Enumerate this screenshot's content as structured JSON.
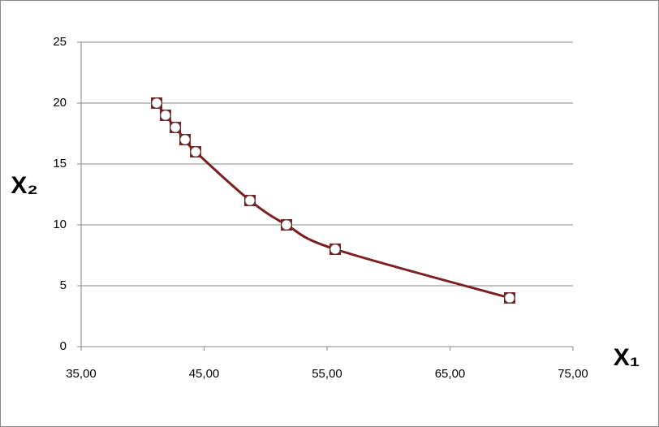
{
  "chart_data": {
    "type": "scatter-line",
    "x_label": "X₁",
    "y_label": "X₂",
    "x": [
      41.14,
      41.86,
      42.66,
      43.45,
      44.31,
      48.73,
      51.7,
      55.66,
      69.85
    ],
    "series": [
      {
        "color": "#7b2020",
        "values": [
          20,
          19,
          18,
          17,
          16,
          12,
          10,
          8,
          4
        ]
      }
    ],
    "xlim": [
      35,
      75
    ],
    "xticks": [
      {
        "value": 35,
        "label": "35,00"
      },
      {
        "value": 45,
        "label": "45,00"
      },
      {
        "value": 55,
        "label": "55,00"
      },
      {
        "value": 65,
        "label": "65,00"
      },
      {
        "value": 75,
        "label": "75,00"
      }
    ],
    "ylim": [
      0,
      25
    ],
    "yticks": [
      0,
      5,
      10,
      15,
      20,
      25
    ],
    "grid": true
  }
}
